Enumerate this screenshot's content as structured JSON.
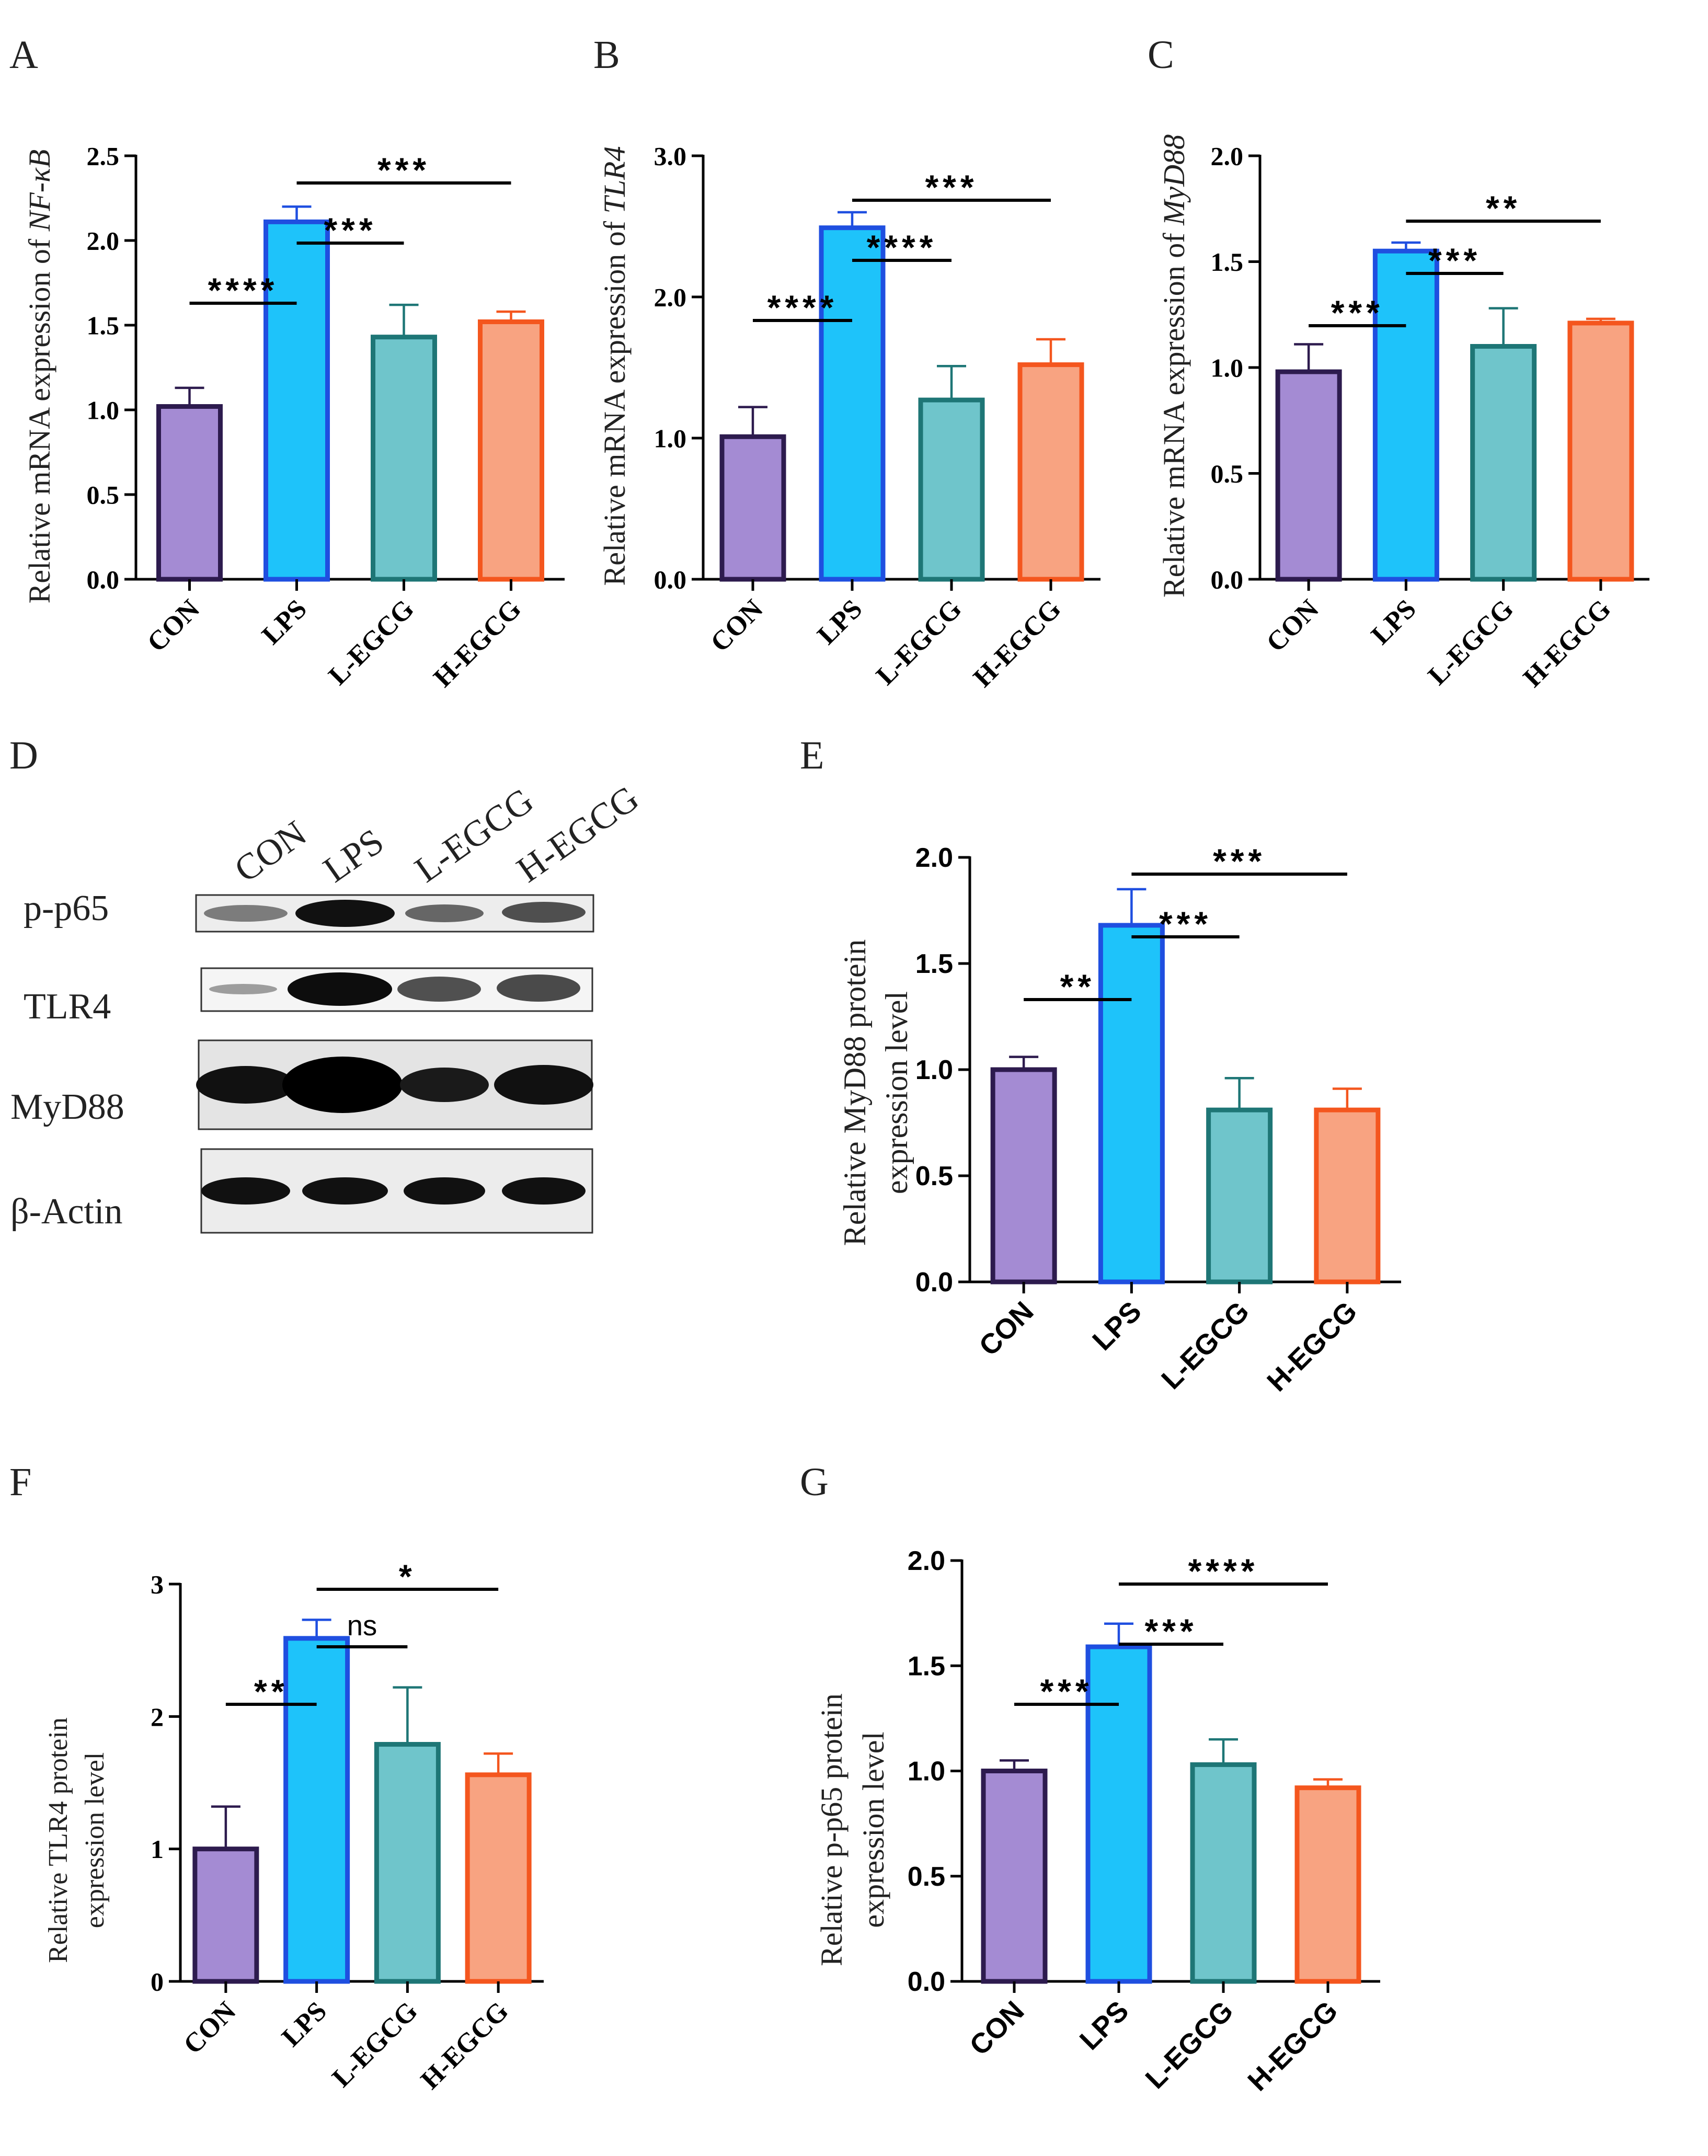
{
  "figure": {
    "colors": {
      "CON": {
        "fill": "#A48BD3",
        "edge": "#2D1B4E"
      },
      "LPS": {
        "fill": "#1EC3FA",
        "edge": "#1F4FE0"
      },
      "L-EGCG": {
        "fill": "#6FC5CB",
        "edge": "#1E7676"
      },
      "H-EGCG": {
        "fill": "#F8A381",
        "edge": "#F4561E"
      }
    },
    "western_blot": {
      "label": "D",
      "lanes": [
        "CON",
        "LPS",
        "L-EGCG",
        "H-EGCG"
      ],
      "proteins": [
        "p-p65",
        "TLR4",
        "MyD88",
        "β-Actin"
      ]
    }
  },
  "chart_data": [
    {
      "id": "A",
      "label": "A",
      "type": "bar",
      "categories": [
        "CON",
        "LPS",
        "L-EGCG",
        "H-EGCG"
      ],
      "values": [
        1.02,
        2.11,
        1.43,
        1.52
      ],
      "errors": [
        0.11,
        0.09,
        0.19,
        0.06
      ],
      "ylabel_prefix": "Relative mRNA expression of ",
      "ylabel_italic": "NF-κB",
      "ylabel_line2": "",
      "ylim": [
        0,
        2.5
      ],
      "yticks": [
        0,
        0.5,
        1,
        1.5,
        2,
        2.5
      ],
      "ytick_labels": [
        "0.0",
        "0.5",
        "1.0",
        "1.5",
        "2.0",
        "2.5"
      ],
      "sig": [
        {
          "from": 0,
          "to": 1,
          "text": "****",
          "level": 0
        },
        {
          "from": 1,
          "to": 2,
          "text": "***",
          "level": 1
        },
        {
          "from": 1,
          "to": 3,
          "text": "***",
          "level": 2
        }
      ]
    },
    {
      "id": "B",
      "label": "B",
      "type": "bar",
      "categories": [
        "CON",
        "LPS",
        "L-EGCG",
        "H-EGCG"
      ],
      "values": [
        1.01,
        2.49,
        1.27,
        1.52
      ],
      "errors": [
        0.21,
        0.11,
        0.24,
        0.18
      ],
      "ylabel_prefix": "Relative mRNA expression of ",
      "ylabel_italic": "TLR4",
      "ylabel_line2": "",
      "ylim": [
        0,
        3.0
      ],
      "yticks": [
        0,
        1,
        2,
        3
      ],
      "ytick_labels": [
        "0.0",
        "1.0",
        "2.0",
        "3.0"
      ],
      "sig": [
        {
          "from": 0,
          "to": 1,
          "text": "****",
          "level": 0
        },
        {
          "from": 1,
          "to": 2,
          "text": "****",
          "level": 1
        },
        {
          "from": 1,
          "to": 3,
          "text": "***",
          "level": 2
        }
      ]
    },
    {
      "id": "C",
      "label": "C",
      "type": "bar",
      "categories": [
        "CON",
        "LPS",
        "L-EGCG",
        "H-EGCG"
      ],
      "values": [
        0.98,
        1.55,
        1.1,
        1.21
      ],
      "errors": [
        0.13,
        0.04,
        0.18,
        0.02
      ],
      "ylabel_prefix": "Relative mRNA expression of ",
      "ylabel_italic": "MyD88",
      "ylabel_line2": "",
      "ylim": [
        0,
        2.0
      ],
      "yticks": [
        0,
        0.5,
        1,
        1.5,
        2
      ],
      "ytick_labels": [
        "0.0",
        "0.5",
        "1.0",
        "1.5",
        "2.0"
      ],
      "sig": [
        {
          "from": 0,
          "to": 1,
          "text": "***",
          "level": 0
        },
        {
          "from": 1,
          "to": 2,
          "text": "***",
          "level": 1
        },
        {
          "from": 1,
          "to": 3,
          "text": "**",
          "level": 2
        }
      ]
    },
    {
      "id": "E",
      "label": "E",
      "type": "bar",
      "categories": [
        "CON",
        "LPS",
        "L-EGCG",
        "H-EGCG"
      ],
      "values": [
        1.0,
        1.68,
        0.81,
        0.81
      ],
      "errors": [
        0.06,
        0.17,
        0.15,
        0.1
      ],
      "ylabel_prefix": "Relative MyD88 protein",
      "ylabel_italic": "",
      "ylabel_line2": "expression level",
      "ylim": [
        0,
        2.0
      ],
      "yticks": [
        0,
        0.5,
        1,
        1.5,
        2
      ],
      "ytick_labels": [
        "0.0",
        "0.5",
        "1.0",
        "1.5",
        "2.0"
      ],
      "sig": [
        {
          "from": 0,
          "to": 1,
          "text": "**",
          "level": 0
        },
        {
          "from": 1,
          "to": 2,
          "text": "***",
          "level": 1
        },
        {
          "from": 1,
          "to": 3,
          "text": "***",
          "level": 2
        }
      ]
    },
    {
      "id": "F",
      "label": "F",
      "type": "bar",
      "categories": [
        "CON",
        "LPS",
        "L-EGCG",
        "H-EGCG"
      ],
      "values": [
        1.0,
        2.59,
        1.79,
        1.56
      ],
      "errors": [
        0.32,
        0.14,
        0.43,
        0.16
      ],
      "ylabel_prefix": "Relative TLR4 protein",
      "ylabel_italic": "",
      "ylabel_line2": "expression level",
      "ylim": [
        0,
        3
      ],
      "yticks": [
        0,
        1,
        2,
        3
      ],
      "ytick_labels": [
        "0",
        "1",
        "2",
        "3"
      ],
      "sig": [
        {
          "from": 0,
          "to": 1,
          "text": "**",
          "level": 0
        },
        {
          "from": 1,
          "to": 2,
          "text": "ns",
          "level": 1
        },
        {
          "from": 1,
          "to": 3,
          "text": "*",
          "level": 2
        }
      ]
    },
    {
      "id": "G",
      "label": "G",
      "type": "bar",
      "categories": [
        "CON",
        "LPS",
        "L-EGCG",
        "H-EGCG"
      ],
      "values": [
        1.0,
        1.59,
        1.03,
        0.92
      ],
      "errors": [
        0.05,
        0.11,
        0.12,
        0.04
      ],
      "ylabel_prefix": "Relative p-p65 protein",
      "ylabel_italic": "",
      "ylabel_line2": "expression level",
      "ylim": [
        0,
        2.0
      ],
      "yticks": [
        0,
        0.5,
        1,
        1.5,
        2
      ],
      "ytick_labels": [
        "0.0",
        "0.5",
        "1.0",
        "1.5",
        "2.0"
      ],
      "sig": [
        {
          "from": 0,
          "to": 1,
          "text": "***",
          "level": 0
        },
        {
          "from": 1,
          "to": 2,
          "text": "***",
          "level": 1
        },
        {
          "from": 1,
          "to": 3,
          "text": "****",
          "level": 2
        }
      ]
    }
  ]
}
